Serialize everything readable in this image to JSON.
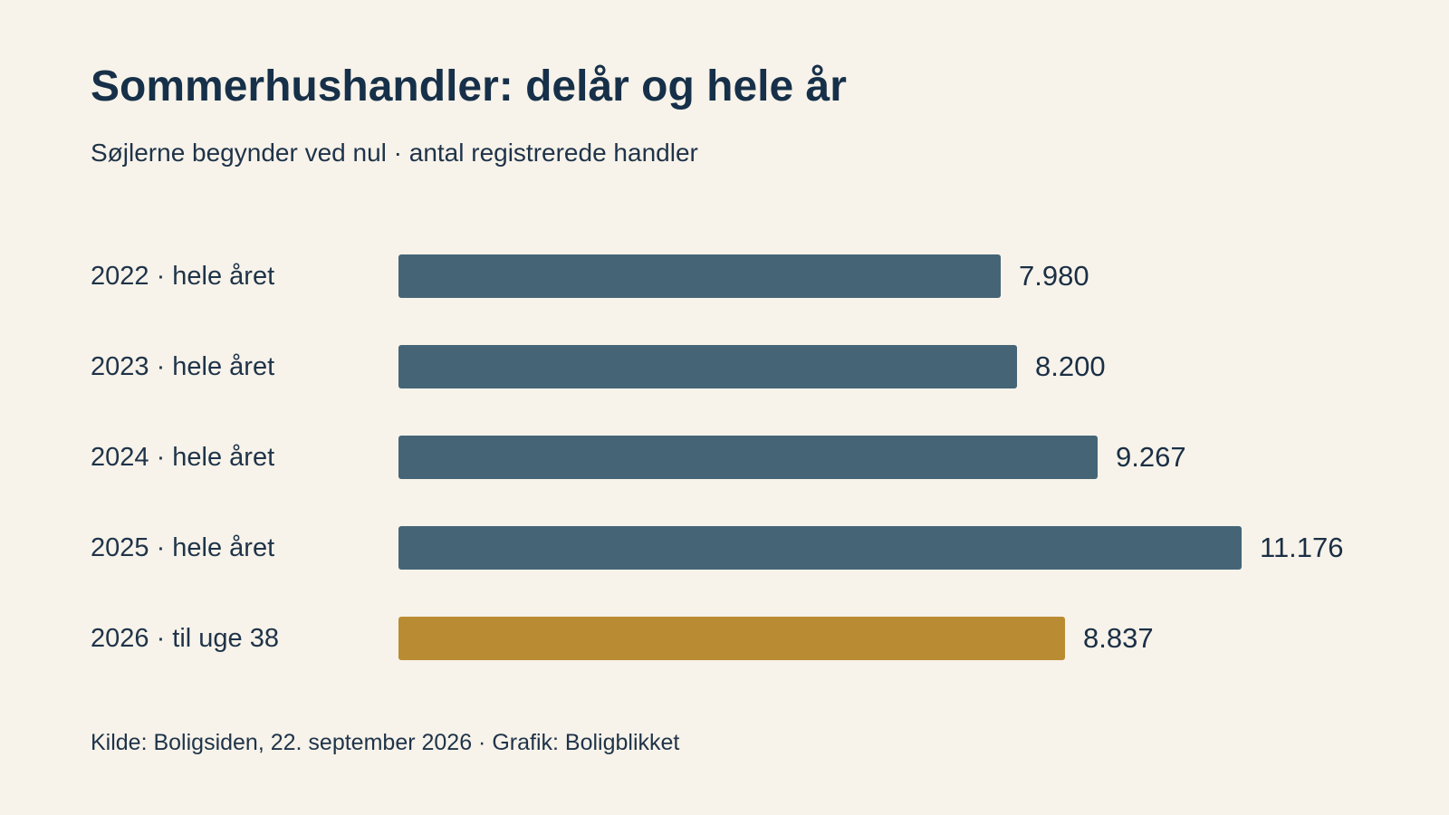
{
  "title": "Sommerhushandler: delår og hele år",
  "subtitle": "Søjlerne begynder ved nul · antal registrerede handler",
  "footer": "Kilde: Boligsiden, 22. september 2026 · Grafik: Boligblikket",
  "colors": {
    "background": "#f7f3ea",
    "full_year_bar": "#456577",
    "partial_year_bar": "#b98c33",
    "text": "#1b2f45"
  },
  "chart_data": {
    "type": "bar",
    "orientation": "horizontal",
    "title": "Sommerhushandler: delår og hele år",
    "subtitle": "Søjlerne begynder ved nul · antal registrerede handler",
    "categories": [
      "2022 · hele året",
      "2023 · hele året",
      "2024 · hele året",
      "2025 · hele året",
      "2026 · til uge 38"
    ],
    "values": [
      7980,
      8200,
      9267,
      11176,
      8837
    ],
    "value_labels": [
      "7.980",
      "8.200",
      "9.267",
      "11.176",
      "8.837"
    ],
    "highlight": [
      false,
      false,
      false,
      false,
      true
    ],
    "xlim": [
      0,
      11176
    ],
    "grid": false,
    "legend": "none"
  }
}
